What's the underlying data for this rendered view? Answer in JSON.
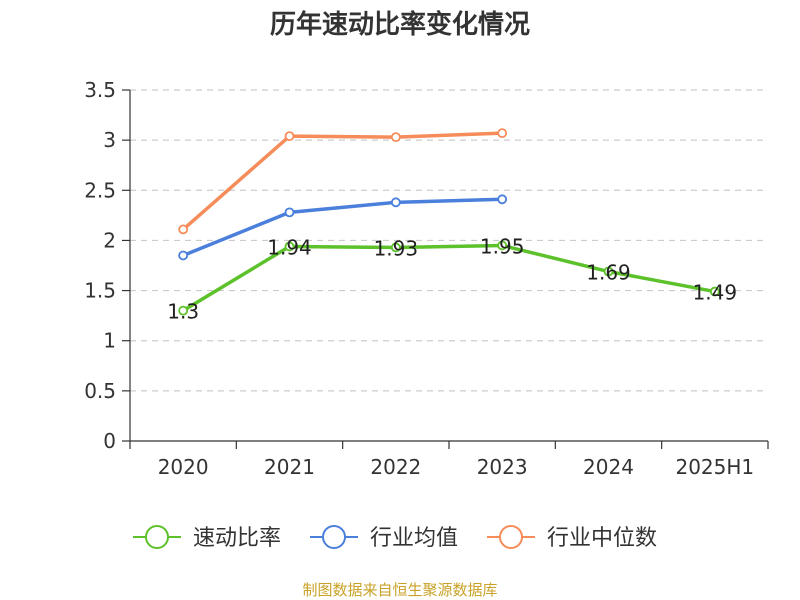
{
  "chart_data": {
    "type": "line",
    "title": "历年速动比率变化情况",
    "categories": [
      "2020",
      "2021",
      "2022",
      "2023",
      "2024",
      "2025H1"
    ],
    "ylim": [
      0,
      3.5
    ],
    "yticks": [
      "0",
      "0.5",
      "1",
      "1.5",
      "2",
      "2.5",
      "3",
      "3.5"
    ],
    "grid": true,
    "legend_position": "bottom",
    "series": [
      {
        "name": "速动比率",
        "color": "#5cc12a",
        "values": [
          1.3,
          1.94,
          1.93,
          1.95,
          1.69,
          1.49
        ],
        "labels": [
          "1.3",
          "1.94",
          "1.93",
          "1.95",
          "1.69",
          "1.49"
        ]
      },
      {
        "name": "行业均值",
        "color": "#4a7fdc",
        "values": [
          1.85,
          2.28,
          2.38,
          2.41,
          null,
          null
        ]
      },
      {
        "name": "行业中位数",
        "color": "#f58c5a",
        "values": [
          2.11,
          3.04,
          3.03,
          3.07,
          null,
          null
        ]
      }
    ]
  },
  "footer": {
    "source": "制图数据来自恒生聚源数据库"
  }
}
